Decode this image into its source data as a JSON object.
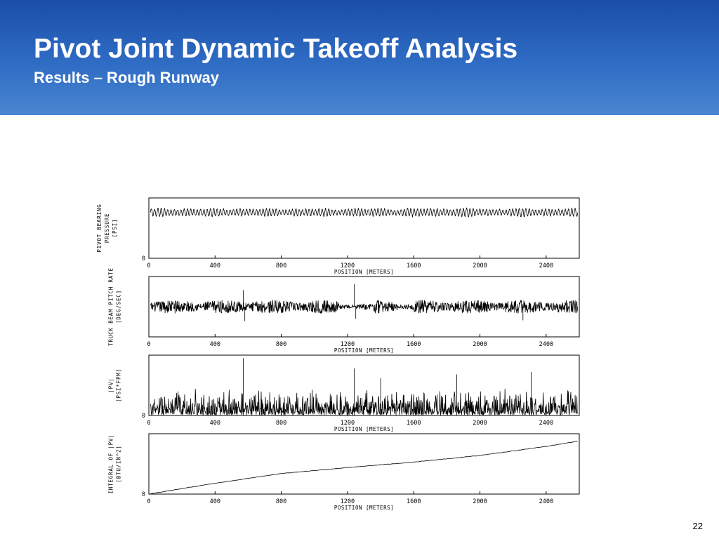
{
  "slide": {
    "title": "Pivot Joint Dynamic Takeoff Analysis",
    "subtitle": "Results – Rough Runway",
    "page_number": "22"
  },
  "colors": {
    "header_top": "#1a4ea8",
    "header_bottom": "#4a86d0",
    "trace": "#000000"
  },
  "chart_data": [
    {
      "type": "line",
      "ylabel_lines": [
        "PIVOT BEARING",
        "PRESSURE",
        "[PSI]"
      ],
      "xlabel": "POSITION [METERS]",
      "x_ticks": [
        "0",
        "400",
        "800",
        "1200",
        "1600",
        "2000",
        "2400"
      ],
      "y_ticks": [
        "0"
      ],
      "xlim": [
        0,
        2600
      ],
      "ylim": [
        0,
        1
      ],
      "grid": false,
      "series": [
        {
          "pattern": "oscillation",
          "mean": 0.76,
          "amplitude": 0.07,
          "cycles": 130
        }
      ]
    },
    {
      "type": "line",
      "ylabel_lines": [
        "TRUCK BEAM PITCH RATE",
        "[DEG/SEC]"
      ],
      "xlabel": "POSITION [METERS]",
      "x_ticks": [
        "0",
        "400",
        "800",
        "1200",
        "1600",
        "2000",
        "2400"
      ],
      "y_ticks": [],
      "xlim": [
        0,
        2600
      ],
      "ylim": [
        -1,
        1
      ],
      "grid": false,
      "series": [
        {
          "pattern": "noise",
          "mean": 0,
          "amplitude": 0.22,
          "points": 1200,
          "spikes": [
            [
              570,
              0.55
            ],
            [
              580,
              -0.48
            ],
            [
              1240,
              0.75
            ],
            [
              1250,
              -0.4
            ],
            [
              2260,
              -0.45
            ],
            [
              2600,
              -0.5
            ]
          ]
        }
      ]
    },
    {
      "type": "line",
      "ylabel_lines": [
        "|PV|",
        "[PSI*FPM]"
      ],
      "xlabel": "POSITION [METERS]",
      "x_ticks": [
        "0",
        "400",
        "800",
        "1200",
        "1600",
        "2000",
        "2400"
      ],
      "y_ticks": [
        "0"
      ],
      "xlim": [
        0,
        2600
      ],
      "ylim": [
        0,
        1
      ],
      "grid": false,
      "series": [
        {
          "pattern": "positive-noise",
          "amplitude": 0.28,
          "points": 1200,
          "spikes": [
            [
              570,
              0.95
            ],
            [
              1240,
              0.78
            ],
            [
              1400,
              0.62
            ],
            [
              1860,
              0.68
            ],
            [
              2310,
              0.72
            ],
            [
              2600,
              0.55
            ]
          ]
        }
      ]
    },
    {
      "type": "line",
      "ylabel_lines": [
        "INTEGRAL OF |PV|",
        "[BTU/IN^2]"
      ],
      "xlabel": "POSITION [METERS]",
      "x_ticks": [
        "0",
        "400",
        "800",
        "1200",
        "1600",
        "2000",
        "2400"
      ],
      "y_ticks": [
        "0"
      ],
      "xlim": [
        0,
        2600
      ],
      "ylim": [
        0,
        1
      ],
      "grid": false,
      "series": [
        {
          "pattern": "cumulative",
          "x": [
            0,
            400,
            800,
            1200,
            1600,
            2000,
            2400,
            2600
          ],
          "y": [
            0.0,
            0.18,
            0.34,
            0.44,
            0.53,
            0.64,
            0.79,
            0.88
          ]
        }
      ]
    }
  ]
}
